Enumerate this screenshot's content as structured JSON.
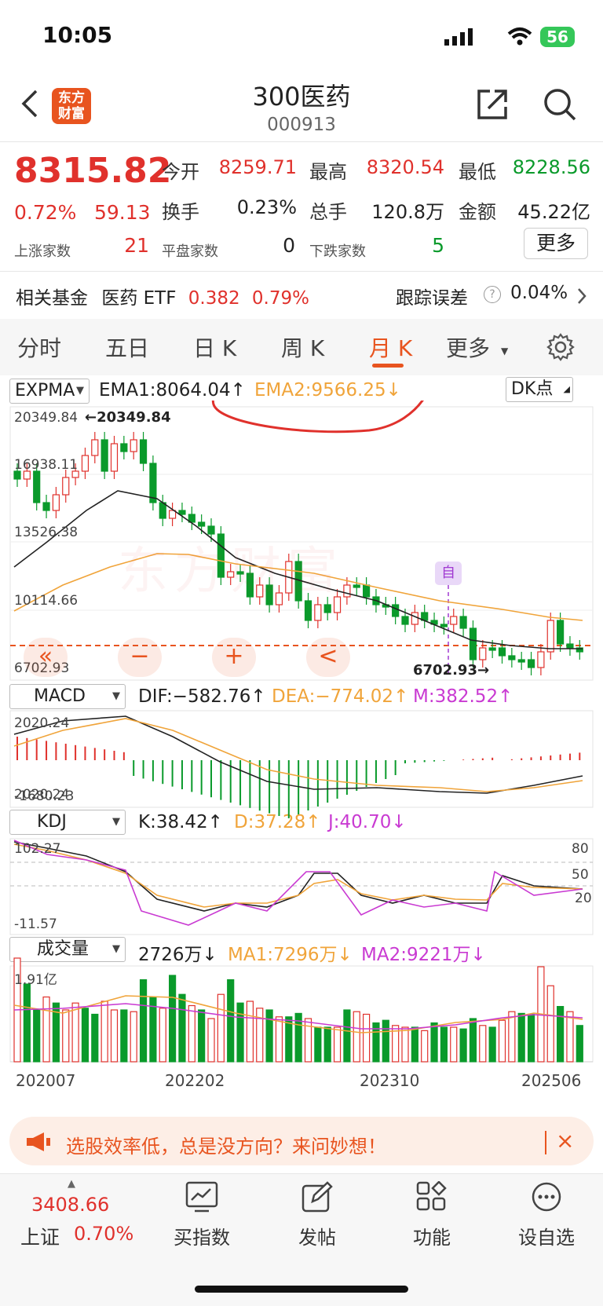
{
  "status_bar": {
    "time": "10:05",
    "battery": "56"
  },
  "header": {
    "name": "300医药",
    "code": "000913",
    "logo": "东方\n财富"
  },
  "quote": {
    "price": "8315.82",
    "pct": "0.72%",
    "change": "59.13",
    "open_label": "今开",
    "open": "8259.71",
    "high_label": "最高",
    "high": "8320.54",
    "low_label": "最低",
    "low": "8228.56",
    "turnover_label": "换手",
    "turnover": "0.23%",
    "volume_label": "总手",
    "volume": "120.8万",
    "amount_label": "金额",
    "amount": "45.22亿",
    "up_label": "上涨家数",
    "up": "21",
    "flat_label": "平盘家数",
    "flat": "0",
    "down_label": "下跌家数",
    "down": "5",
    "more": "更多"
  },
  "fund": {
    "label": "相关基金",
    "name": "医药 ETF",
    "price": "0.382",
    "pct": "0.79%",
    "track_label": "跟踪误差",
    "track_value": "0.04%"
  },
  "tabs": [
    "分时",
    "五日",
    "日 K",
    "周 K",
    "月 K",
    "更多"
  ],
  "active_tab": "月 K",
  "expma": {
    "selector": "EXPMA",
    "ema1": "EMA1:8064.04↑",
    "ema2": "EMA2:9566.25↓",
    "dk": "DK点"
  },
  "main_chart": {
    "y_labels": [
      "20349.84",
      "16938.11",
      "13526.38",
      "10114.66",
      "6702.93"
    ],
    "high_label": "←20349.84",
    "low_label": "6702.93→",
    "self_marker": "自",
    "nav_buttons": [
      "«",
      "−",
      "+",
      "<"
    ],
    "watermark": "东方财富"
  },
  "macd": {
    "selector": "MACD",
    "dif": "DIF:−582.76↑",
    "dea": "DEA:−774.02↑",
    "m": "M:382.52↑",
    "top": "2020.24",
    "bottom": "-1680.23"
  },
  "kdj": {
    "selector": "KDJ",
    "k": "K:38.42↑",
    "d": "D:37.28↑",
    "j": "J:40.70↓",
    "top": "102.27",
    "bottom": "-11.57",
    "levels": [
      "80",
      "50",
      "20"
    ]
  },
  "volume": {
    "selector": "成交量",
    "value": "2726万↓",
    "ma1": "MA1:7296万↓",
    "ma2": "MA2:9221万↓",
    "top": "1.91亿"
  },
  "x_labels": [
    "202007",
    "202202",
    "202310",
    "202506"
  ],
  "banner": {
    "text": "选股效率低，总是没方向？来问妙想！",
    "close": "×"
  },
  "bottom_bar": {
    "index_value": "3408.66",
    "index_name": "上证",
    "index_pct": "0.70%",
    "items": [
      "买指数",
      "发帖",
      "功能",
      "设自选"
    ]
  },
  "colors": {
    "up": "#e0312c",
    "down": "#0a9a2b",
    "accent": "#e8541f",
    "ema2": "#f0a43a",
    "purple": "#c93ad2"
  }
}
